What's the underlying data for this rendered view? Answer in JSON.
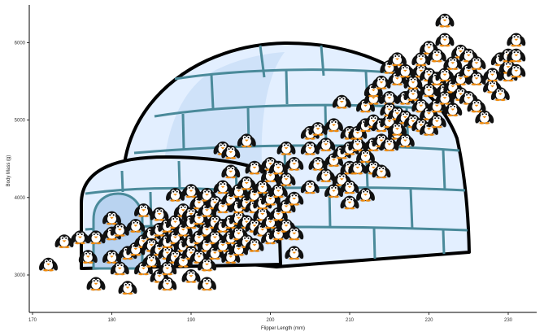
{
  "chart_data": {
    "type": "scatter",
    "title": "",
    "xlabel": "Flipper Length (mm)",
    "ylabel": "Body Mass (g)",
    "xlim": [
      169.5,
      233.5
    ],
    "ylim": [
      2500,
      6600
    ],
    "x_ticks": [
      170,
      180,
      190,
      200,
      210,
      220,
      230
    ],
    "x_tick_labels": [
      "170",
      "180",
      "190",
      "200",
      "210",
      "220",
      "230"
    ],
    "y_ticks": [
      3000,
      4000,
      5000,
      6000
    ],
    "y_tick_labels": [
      "3000",
      "4000",
      "5000",
      "6000"
    ],
    "grid": false,
    "legend": "none",
    "marker": "penguin-icon",
    "background": "igloo-illustration",
    "colors": {
      "penguin_body": "#111111",
      "penguin_belly": "#ffffff",
      "penguin_beak": "#f08a0c",
      "igloo_fill": "#e3efff",
      "igloo_block_line": "#4a8a9a",
      "igloo_outline": "#000000"
    },
    "points": [
      [
        172,
        3150
      ],
      [
        174,
        3450
      ],
      [
        176,
        3500
      ],
      [
        177,
        3250
      ],
      [
        178,
        3500
      ],
      [
        178,
        2900
      ],
      [
        180,
        3550
      ],
      [
        180,
        3250
      ],
      [
        180,
        3750
      ],
      [
        181,
        3100
      ],
      [
        181,
        3600
      ],
      [
        182,
        3300
      ],
      [
        182,
        2850
      ],
      [
        183,
        3350
      ],
      [
        183,
        3650
      ],
      [
        184,
        3450
      ],
      [
        184,
        3850
      ],
      [
        184,
        3100
      ],
      [
        185,
        3550
      ],
      [
        185,
        3400
      ],
      [
        185,
        3200
      ],
      [
        186,
        3800
      ],
      [
        186,
        3350
      ],
      [
        186,
        3600
      ],
      [
        186,
        3000
      ],
      [
        187,
        3650
      ],
      [
        187,
        3300
      ],
      [
        187,
        3450
      ],
      [
        187,
        3100
      ],
      [
        187,
        2900
      ],
      [
        188,
        3700
      ],
      [
        188,
        3500
      ],
      [
        188,
        3250
      ],
      [
        188,
        4050
      ],
      [
        189,
        3600
      ],
      [
        189,
        3400
      ],
      [
        189,
        3850
      ],
      [
        189,
        3200
      ],
      [
        190,
        3800
      ],
      [
        190,
        3450
      ],
      [
        190,
        4100
      ],
      [
        190,
        3700
      ],
      [
        190,
        3300
      ],
      [
        190,
        3000
      ],
      [
        191,
        3500
      ],
      [
        191,
        3750
      ],
      [
        191,
        3250
      ],
      [
        191,
        3950
      ],
      [
        192,
        3600
      ],
      [
        192,
        3400
      ],
      [
        192,
        4050
      ],
      [
        192,
        3850
      ],
      [
        192,
        2900
      ],
      [
        192,
        3150
      ],
      [
        193,
        3700
      ],
      [
        193,
        3500
      ],
      [
        193,
        3950
      ],
      [
        193,
        3300
      ],
      [
        194,
        3650
      ],
      [
        194,
        3400
      ],
      [
        194,
        3900
      ],
      [
        194,
        4150
      ],
      [
        194,
        4650
      ],
      [
        195,
        3700
      ],
      [
        195,
        3500
      ],
      [
        195,
        4000
      ],
      [
        195,
        3250
      ],
      [
        195,
        4350
      ],
      [
        195,
        4600
      ],
      [
        196,
        3550
      ],
      [
        196,
        3750
      ],
      [
        196,
        4100
      ],
      [
        196,
        3900
      ],
      [
        196,
        3350
      ],
      [
        197,
        3700
      ],
      [
        197,
        3450
      ],
      [
        197,
        4200
      ],
      [
        197,
        3950
      ],
      [
        197,
        4750
      ],
      [
        198,
        3650
      ],
      [
        198,
        3900
      ],
      [
        198,
        4400
      ],
      [
        198,
        4050
      ],
      [
        198,
        3400
      ],
      [
        199,
        3800
      ],
      [
        199,
        3600
      ],
      [
        199,
        4150
      ],
      [
        199,
        3950
      ],
      [
        200,
        3700
      ],
      [
        200,
        4000
      ],
      [
        200,
        4300
      ],
      [
        200,
        3500
      ],
      [
        200,
        4450
      ],
      [
        201,
        3800
      ],
      [
        201,
        4100
      ],
      [
        201,
        3550
      ],
      [
        201,
        4400
      ],
      [
        202,
        3900
      ],
      [
        202,
        3650
      ],
      [
        202,
        4250
      ],
      [
        202,
        4650
      ],
      [
        203,
        3550
      ],
      [
        203,
        4000
      ],
      [
        203,
        4450
      ],
      [
        203,
        3300
      ],
      [
        205,
        4150
      ],
      [
        205,
        4650
      ],
      [
        205,
        4850
      ],
      [
        206,
        4450
      ],
      [
        206,
        4900
      ],
      [
        207,
        4300
      ],
      [
        207,
        4700
      ],
      [
        208,
        4100
      ],
      [
        208,
        4500
      ],
      [
        208,
        4950
      ],
      [
        209,
        4250
      ],
      [
        209,
        4600
      ],
      [
        209,
        5250
      ],
      [
        210,
        4150
      ],
      [
        210,
        4400
      ],
      [
        210,
        4850
      ],
      [
        210,
        4650
      ],
      [
        210,
        3950
      ],
      [
        211,
        4400
      ],
      [
        211,
        4700
      ],
      [
        211,
        4850
      ],
      [
        212,
        4550
      ],
      [
        212,
        4950
      ],
      [
        212,
        5200
      ],
      [
        212,
        4050
      ],
      [
        213,
        4700
      ],
      [
        213,
        5000
      ],
      [
        213,
        5300
      ],
      [
        213,
        5400
      ],
      [
        213,
        4400
      ],
      [
        214,
        4750
      ],
      [
        214,
        4950
      ],
      [
        214,
        5500
      ],
      [
        214,
        4350
      ],
      [
        215,
        5000
      ],
      [
        215,
        4700
      ],
      [
        215,
        5300
      ],
      [
        215,
        5700
      ],
      [
        215,
        5150
      ],
      [
        216,
        4850
      ],
      [
        216,
        5100
      ],
      [
        216,
        5550
      ],
      [
        216,
        5800
      ],
      [
        216,
        4900
      ],
      [
        217,
        5050
      ],
      [
        217,
        4750
      ],
      [
        217,
        5300
      ],
      [
        217,
        5650
      ],
      [
        218,
        5000
      ],
      [
        218,
        5350
      ],
      [
        218,
        5500
      ],
      [
        219,
        5200
      ],
      [
        219,
        4950
      ],
      [
        219,
        5650
      ],
      [
        219,
        5800
      ],
      [
        220,
        5100
      ],
      [
        220,
        5400
      ],
      [
        220,
        5600
      ],
      [
        220,
        5950
      ],
      [
        220,
        4900
      ],
      [
        221,
        5200
      ],
      [
        221,
        5550
      ],
      [
        221,
        5850
      ],
      [
        221,
        5000
      ],
      [
        222,
        5400
      ],
      [
        222,
        5600
      ],
      [
        222,
        5300
      ],
      [
        222,
        6050
      ],
      [
        222,
        6300
      ],
      [
        223,
        5450
      ],
      [
        223,
        5750
      ],
      [
        223,
        5150
      ],
      [
        224,
        5550
      ],
      [
        224,
        5900
      ],
      [
        224,
        5350
      ],
      [
        225,
        5300
      ],
      [
        225,
        5650
      ],
      [
        225,
        5850
      ],
      [
        226,
        5750
      ],
      [
        226,
        5550
      ],
      [
        226,
        5200
      ],
      [
        227,
        5050
      ],
      [
        228,
        5450
      ],
      [
        228,
        5600
      ],
      [
        229,
        5800
      ],
      [
        229,
        5350
      ],
      [
        230,
        5600
      ],
      [
        230,
        5700
      ],
      [
        230,
        5850
      ],
      [
        231,
        5850
      ],
      [
        231,
        6050
      ],
      [
        231,
        5650
      ]
    ]
  }
}
